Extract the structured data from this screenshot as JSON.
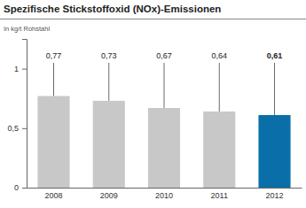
{
  "chart_data": {
    "type": "bar",
    "title": "Spezifische Stickstoffoxid (NOx)-Emissionen",
    "subtitle": "In kg/t Rohstahl",
    "categories": [
      "2008",
      "2009",
      "2010",
      "2011",
      "2012"
    ],
    "values": [
      0.77,
      0.73,
      0.67,
      0.64,
      0.61
    ],
    "value_labels": [
      "0,77",
      "0,73",
      "0,67",
      "0,64",
      "0,61"
    ],
    "colors": [
      "#c8c8c8",
      "#c8c8c8",
      "#c8c8c8",
      "#c8c8c8",
      "#0a6fa8"
    ],
    "ylim": [
      0,
      1.25
    ],
    "yticks": [
      0,
      {
        "value": 0.5,
        "label": "0,5"
      },
      1
    ],
    "data_labels": true,
    "grid": false
  }
}
